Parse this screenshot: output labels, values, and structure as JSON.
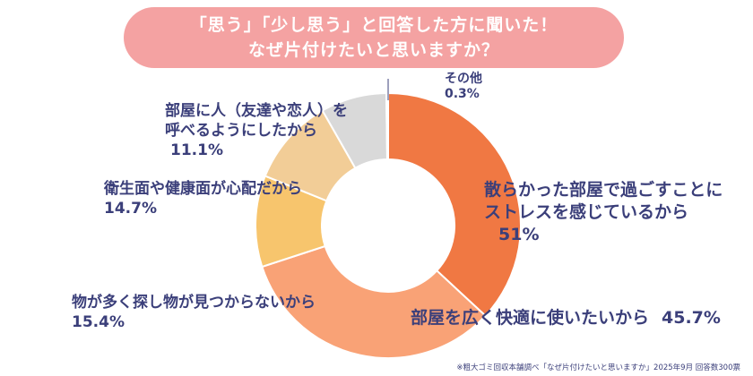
{
  "title_lines": [
    "「思う」「少し思う」と回答した方に聞いた！",
    "なぜ片付けたいと思いますか？"
  ],
  "chart_data": {
    "type": "pie",
    "title": "「思う」「少し思う」と回答した方に聞いた！ なぜ片付けたいと思いますか？",
    "donut": true,
    "categories": [
      "散らかった部屋で過ごすことにストレスを感じているから",
      "部屋を広く快適に使いたいから",
      "物が多く探し物が見つからないから",
      "衛生面や健康面が心配だから",
      "部屋に人（友達や恋人）を呼べるようにしたから",
      "その他"
    ],
    "values": [
      51,
      45.7,
      15.4,
      14.7,
      11.1,
      0.3
    ],
    "colors": [
      "#f07843",
      "#f9a276",
      "#f7c56d",
      "#f2cd97",
      "#d9d9d9",
      "#cccccc"
    ]
  },
  "labels": {
    "stress": {
      "lines": [
        "散らかった部屋で過ごすことに",
        "ストレスを感じているから"
      ],
      "value": "51%"
    },
    "space": {
      "text": "部屋を広く快適に使いたいから",
      "value": "45.7%"
    },
    "search": {
      "text": "物が多く探し物が見つからないから",
      "value": "15.4%"
    },
    "hygiene": {
      "text": "衛生面や健康面が心配だから",
      "value": "14.7%"
    },
    "guests": {
      "lines": [
        "部屋に人（友達や恋人）を",
        "呼べるようにしたから"
      ],
      "value": "11.1%"
    },
    "other": {
      "text": "その他",
      "value": "0.3%"
    }
  },
  "footnote": "※粗大ゴミ回収本舗調べ「なぜ片付けたいと思いますか」2025年9月 回答数300票"
}
